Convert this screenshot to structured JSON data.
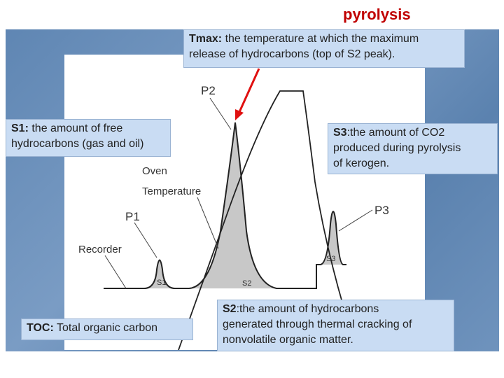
{
  "title": "pyrolysis",
  "boxes": {
    "tmax": {
      "term": "Tmax:",
      "lines": [
        "the temperature at which the maximum",
        "release of hydrocarbons (top of S2 peak)."
      ]
    },
    "s1": {
      "term": "S1:",
      "lines": [
        "the amount of free",
        "hydrocarbons (gas and oil)"
      ]
    },
    "s3": {
      "term": "S3",
      "lines": [
        ":the amount of CO2",
        "produced during pyrolysis",
        "of kerogen."
      ]
    },
    "s2": {
      "term": "S2",
      "lines": [
        ":the amount of hydrocarbons",
        "generated through thermal cracking of",
        "nonvolatile organic matter."
      ]
    },
    "toc": {
      "term": "TOC:",
      "lines": [
        "Total organic carbon"
      ]
    }
  },
  "diagram": {
    "p1": "P1",
    "p2": "P2",
    "p3": "P3",
    "s1": "S1",
    "s2": "S2",
    "s3": "S3",
    "oven": [
      "Oven",
      "Temperature"
    ],
    "recorder": "Recorder"
  }
}
